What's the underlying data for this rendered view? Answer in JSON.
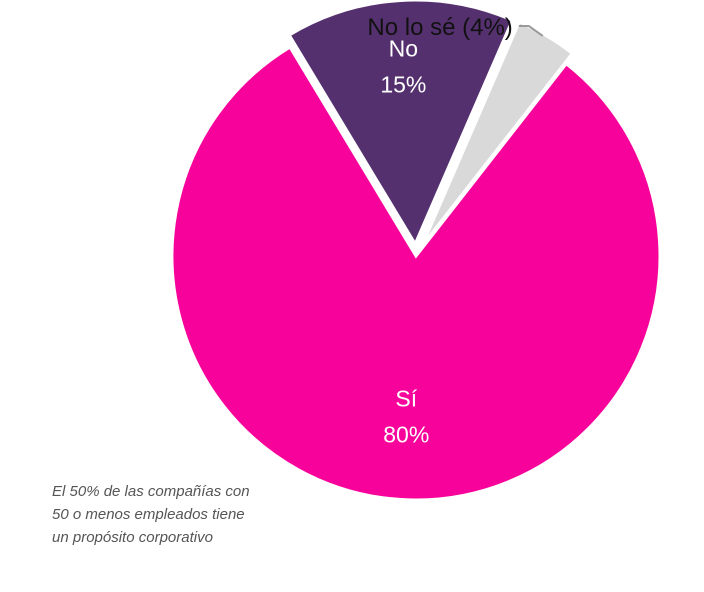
{
  "chart_data": {
    "type": "pie",
    "title": "",
    "slices": [
      {
        "label": "Sí",
        "value": 80,
        "value_text": "80%",
        "color": "#F7039B",
        "exploded": false,
        "label_position": "inside"
      },
      {
        "label": "No",
        "value": 15,
        "value_text": "15%",
        "color": "#55306E",
        "exploded": true,
        "label_position": "inside"
      },
      {
        "label": "No lo sé",
        "value": 4,
        "value_text": "No lo sé (4%)",
        "color": "#D9D9D9",
        "exploded": true,
        "label_position": "outside"
      }
    ],
    "legend": "none"
  },
  "footnote": {
    "lines": [
      "El 50% de las compañías con",
      "50 o menos empleados tiene",
      "un propósito corporativo"
    ]
  }
}
